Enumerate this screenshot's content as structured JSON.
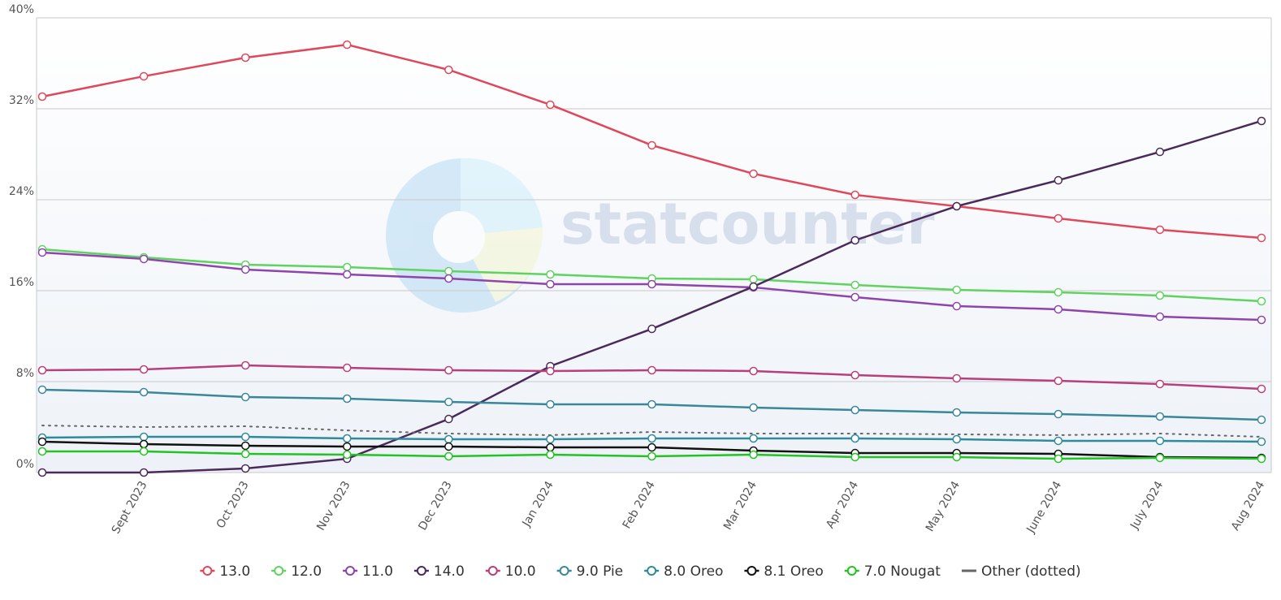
{
  "chart_data": {
    "type": "line",
    "watermark": "statcounter",
    "categories": [
      null,
      "Sept 2023",
      "Oct 2023",
      "Nov 2023",
      "Dec 2023",
      "Jan 2024",
      "Feb 2024",
      "Mar 2024",
      "Apr 2024",
      "May 2024",
      "June 2024",
      "July 2024",
      "Aug 2024"
    ],
    "ylim": [
      0,
      40
    ],
    "yticks": [
      {
        "value": 0,
        "label": "0%"
      },
      {
        "value": 8,
        "label": "8%"
      },
      {
        "value": 16,
        "label": "16%"
      },
      {
        "value": 24,
        "label": "24%"
      },
      {
        "value": 32,
        "label": "32%"
      },
      {
        "value": 40,
        "label": "40%"
      }
    ],
    "grid": true,
    "legend": "bottom",
    "series": [
      {
        "name": "13.0",
        "color": "#e0475b",
        "values": [
          33.07,
          34.86,
          36.5,
          37.64,
          35.43,
          32.36,
          28.79,
          26.29,
          24.43,
          23.43,
          22.36,
          21.36,
          20.64
        ]
      },
      {
        "name": "12.0",
        "color": "#5fd35f",
        "values": [
          19.64,
          18.93,
          18.29,
          18.07,
          17.71,
          17.43,
          17.07,
          17.0,
          16.5,
          16.07,
          15.86,
          15.57,
          15.07
        ]
      },
      {
        "name": "11.0",
        "color": "#8e44ad",
        "values": [
          19.36,
          18.79,
          17.86,
          17.43,
          17.07,
          16.57,
          16.57,
          16.29,
          15.43,
          14.64,
          14.36,
          13.71,
          13.43
        ]
      },
      {
        "name": "14.0",
        "color": "#4a2a5a",
        "values": [
          0,
          0,
          0.36,
          1.21,
          4.71,
          9.36,
          12.64,
          16.36,
          20.43,
          23.43,
          25.71,
          28.21,
          30.93
        ]
      },
      {
        "name": "10.0",
        "color": "#b8407a",
        "values": [
          9.0,
          9.07,
          9.43,
          9.21,
          9.0,
          8.93,
          9.0,
          8.93,
          8.57,
          8.29,
          8.07,
          7.79,
          7.36
        ]
      },
      {
        "name": "9.0 Pie",
        "color": "#3a8799",
        "values": [
          7.29,
          7.07,
          6.64,
          6.5,
          6.21,
          6.0,
          6.0,
          5.71,
          5.5,
          5.29,
          5.14,
          4.93,
          4.64
        ]
      },
      {
        "name": "8.0 Oreo",
        "color": "#2f8a9a",
        "values": [
          3.07,
          3.14,
          3.14,
          3.0,
          2.93,
          2.93,
          3.0,
          3.0,
          3.0,
          2.93,
          2.79,
          2.79,
          2.71
        ]
      },
      {
        "name": "8.1 Oreo",
        "color": "#111111",
        "values": [
          2.71,
          2.5,
          2.36,
          2.29,
          2.29,
          2.21,
          2.21,
          1.93,
          1.71,
          1.71,
          1.64,
          1.36,
          1.29
        ]
      },
      {
        "name": "7.0 Nougat",
        "color": "#22c322",
        "values": [
          1.86,
          1.86,
          1.64,
          1.57,
          1.43,
          1.57,
          1.43,
          1.57,
          1.36,
          1.36,
          1.21,
          1.29,
          1.21
        ]
      },
      {
        "name": "Other (dotted)",
        "color": "#666666",
        "style": "dotted",
        "values": [
          4.14,
          4.0,
          4.07,
          3.71,
          3.43,
          3.29,
          3.57,
          3.43,
          3.43,
          3.36,
          3.29,
          3.43,
          3.14
        ]
      }
    ]
  }
}
